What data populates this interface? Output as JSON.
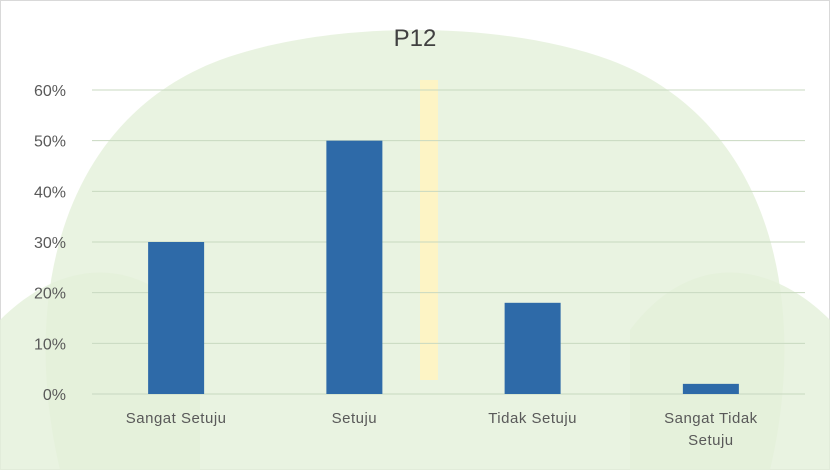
{
  "chart_data": {
    "type": "bar",
    "title": "P12",
    "categories": [
      "Sangat Setuju",
      "Setuju",
      "Tidak Setuju",
      "Sangat Tidak Setuju"
    ],
    "values": [
      30,
      50,
      18,
      2
    ],
    "color": "#2e6aa8",
    "ylim": [
      0,
      60
    ],
    "yticks": [
      {
        "value": 0,
        "label": "0%"
      },
      {
        "value": 10,
        "label": "10%"
      },
      {
        "value": 20,
        "label": "20%"
      },
      {
        "value": 30,
        "label": "30%"
      },
      {
        "value": 40,
        "label": "40%"
      },
      {
        "value": 50,
        "label": "50%"
      },
      {
        "value": 60,
        "label": "60%"
      }
    ],
    "grid": true
  }
}
